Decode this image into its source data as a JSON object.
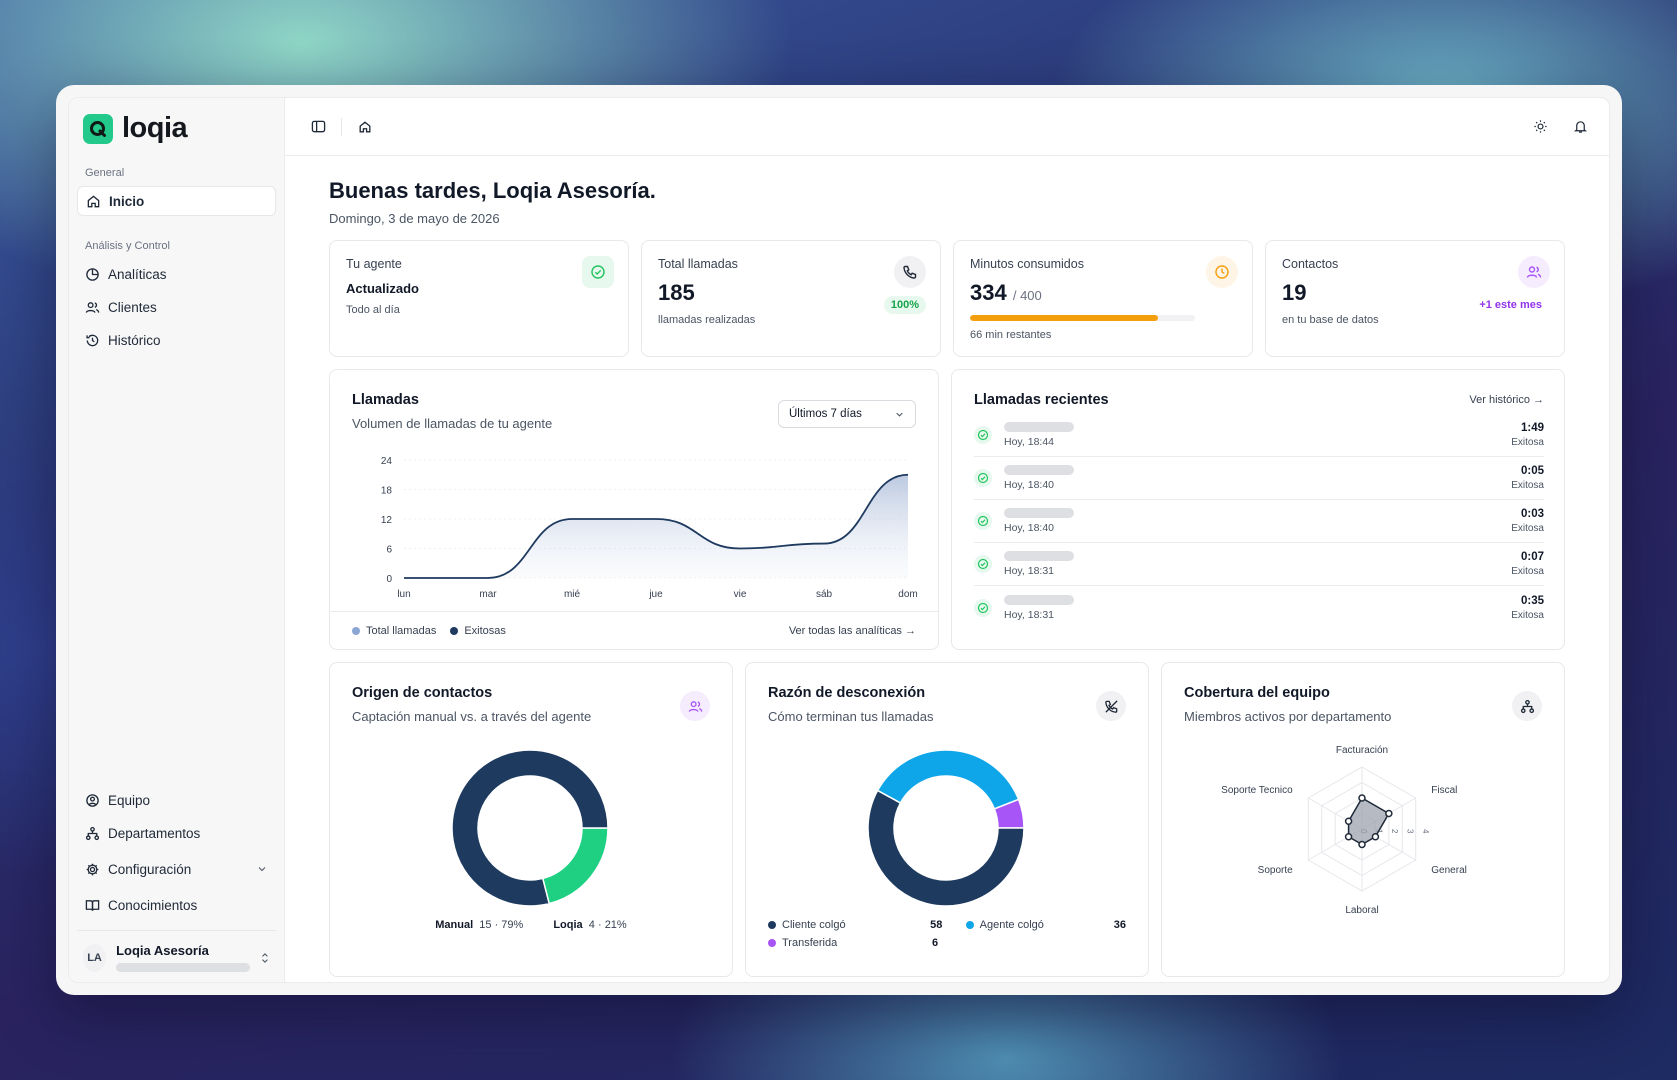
{
  "brand": {
    "name": "loqia",
    "accent": "#22c98a"
  },
  "sidebar": {
    "section_general": "General",
    "item_inicio": "Inicio",
    "section_analysis": "Análisis y Control",
    "item_analiticas": "Analíticas",
    "item_clientes": "Clientes",
    "item_historico": "Histórico",
    "item_equipo": "Equipo",
    "item_departamentos": "Departamentos",
    "item_configuracion": "Configuración",
    "item_conocimientos": "Conocimientos",
    "user_initials": "LA",
    "user_name": "Loqia Asesoría"
  },
  "header": {
    "greeting": "Buenas tardes, Loqia Asesoría.",
    "date": "Domingo, 3 de mayo de 2026"
  },
  "stats": {
    "agent": {
      "title": "Tu agente",
      "status": "Actualizado",
      "sub": "Todo al día"
    },
    "calls": {
      "title": "Total llamadas",
      "value": "185",
      "sub": "llamadas realizadas",
      "badge": "100%"
    },
    "minutes": {
      "title": "Minutos consumidos",
      "value": "334",
      "total": "/ 400",
      "sub": "66 min restantes",
      "progress": 0.835,
      "color": "#f59e0b"
    },
    "contacts": {
      "title": "Contactos",
      "value": "19",
      "sub": "en tu base de datos",
      "badge": "+1 este mes"
    }
  },
  "calls_chart": {
    "title": "Llamadas",
    "subtitle": "Volumen de llamadas de tu agente",
    "range_select": "Últimos 7 días",
    "legend_total": "Total llamadas",
    "legend_success": "Exitosas",
    "link": "Ver todas las analíticas →"
  },
  "recent": {
    "title": "Llamadas recientes",
    "link": "Ver histórico →",
    "items": [
      {
        "time": "Hoy, 18:44",
        "duration": "1:49",
        "status": "Exitosa"
      },
      {
        "time": "Hoy, 18:40",
        "duration": "0:05",
        "status": "Exitosa"
      },
      {
        "time": "Hoy, 18:40",
        "duration": "0:03",
        "status": "Exitosa"
      },
      {
        "time": "Hoy, 18:31",
        "duration": "0:07",
        "status": "Exitosa"
      },
      {
        "time": "Hoy, 18:31",
        "duration": "0:35",
        "status": "Exitosa"
      }
    ]
  },
  "origin": {
    "title": "Origen de contactos",
    "subtitle": "Captación manual vs. a través del agente",
    "manual_label": "Manual",
    "manual_value": "15 · 79%",
    "loqia_label": "Loqia",
    "loqia_value": "4 · 21%"
  },
  "disconnect": {
    "title": "Razón de desconexión",
    "subtitle": "Cómo terminan tus llamadas",
    "client_label": "Cliente colgó",
    "client_value": "58",
    "agent_label": "Agente colgó",
    "agent_value": "36",
    "transfer_label": "Transferida",
    "transfer_value": "6"
  },
  "coverage": {
    "title": "Cobertura del equipo",
    "subtitle": "Miembros activos por departamento"
  },
  "chart_data": [
    {
      "type": "area",
      "categories": [
        "lun",
        "mar",
        "mié",
        "jue",
        "vie",
        "sáb",
        "dom"
      ],
      "yticks": [
        "0",
        "6",
        "12",
        "18",
        "24"
      ],
      "ylim": [
        0,
        24
      ],
      "series": [
        {
          "name": "Total llamadas",
          "values": [
            0,
            0,
            12,
            12,
            6,
            7,
            21
          ],
          "color": "#8aa6d4"
        },
        {
          "name": "Exitosas",
          "values": [
            0,
            0,
            12,
            12,
            6,
            7,
            21
          ],
          "color": "#1e3a5f"
        }
      ]
    },
    {
      "type": "pie",
      "categories": [
        "Manual",
        "Loqia"
      ],
      "values": [
        15,
        4
      ],
      "colors": [
        "#1e3a5f",
        "#1fd083"
      ]
    },
    {
      "type": "pie",
      "categories": [
        "Cliente colgó",
        "Agente colgó",
        "Transferida"
      ],
      "values": [
        58,
        36,
        6
      ],
      "colors": [
        "#1e3a5f",
        "#0ea5e9",
        "#a855f7"
      ]
    },
    {
      "type": "radar",
      "categories": [
        "Facturación",
        "Fiscal",
        "General",
        "Laboral",
        "Soporte",
        "Soporte Tecnico"
      ],
      "values": [
        2,
        2,
        1,
        1,
        1,
        1
      ],
      "rticks": [
        "0",
        "1",
        "2",
        "3",
        "4"
      ],
      "rmax": 4
    }
  ]
}
